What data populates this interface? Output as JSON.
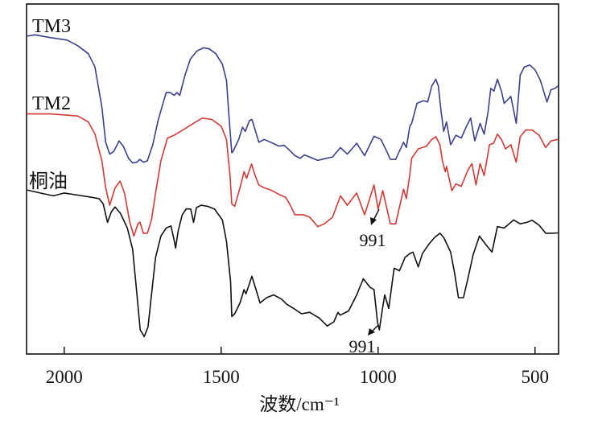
{
  "chart_data": {
    "type": "line",
    "title": "",
    "xlabel": "波数/cm⁻¹",
    "ylabel": "",
    "xlim": [
      2120,
      425
    ],
    "ylim": [
      0,
      100
    ],
    "x_reversed": true,
    "y_ticks_shown": false,
    "grid": false,
    "xticks": [
      2000,
      1500,
      1000,
      500
    ],
    "xtick_labels": [
      "2000",
      "1500",
      "1000",
      "500"
    ],
    "series": [
      {
        "name": "TM3",
        "color": "#3b3f8c",
        "points": [
          [
            2120,
            90.8
          ],
          [
            2094,
            91.2
          ],
          [
            2043,
            90.4
          ],
          [
            1991,
            89.7
          ],
          [
            1957,
            88.1
          ],
          [
            1923,
            85.8
          ],
          [
            1902,
            82.0
          ],
          [
            1880,
            70.5
          ],
          [
            1868,
            60.5
          ],
          [
            1855,
            57.1
          ],
          [
            1842,
            57.9
          ],
          [
            1825,
            60.9
          ],
          [
            1812,
            59.4
          ],
          [
            1795,
            55.9
          ],
          [
            1782,
            54.6
          ],
          [
            1769,
            54.8
          ],
          [
            1759,
            55.6
          ],
          [
            1748,
            54.8
          ],
          [
            1735,
            55.2
          ],
          [
            1718,
            59.8
          ],
          [
            1701,
            66.7
          ],
          [
            1684,
            72.0
          ],
          [
            1675,
            74.7
          ],
          [
            1662,
            74.7
          ],
          [
            1650,
            73.9
          ],
          [
            1641,
            74.7
          ],
          [
            1632,
            73.9
          ],
          [
            1615,
            79.7
          ],
          [
            1598,
            84.3
          ],
          [
            1577,
            86.6
          ],
          [
            1556,
            87.5
          ],
          [
            1538,
            87.2
          ],
          [
            1517,
            85.8
          ],
          [
            1496,
            82.8
          ],
          [
            1483,
            78.2
          ],
          [
            1474,
            66.7
          ],
          [
            1466,
            57.5
          ],
          [
            1462,
            57.9
          ],
          [
            1444,
            61.3
          ],
          [
            1432,
            64.8
          ],
          [
            1423,
            63.6
          ],
          [
            1410,
            66.7
          ],
          [
            1402,
            67.0
          ],
          [
            1393,
            64.4
          ],
          [
            1380,
            60.5
          ],
          [
            1363,
            61.3
          ],
          [
            1342,
            60.5
          ],
          [
            1316,
            59.4
          ],
          [
            1299,
            59.6
          ],
          [
            1282,
            58.2
          ],
          [
            1265,
            56.7
          ],
          [
            1248,
            55.9
          ],
          [
            1235,
            56.9
          ],
          [
            1218,
            56.3
          ],
          [
            1192,
            55.3
          ],
          [
            1171,
            55.8
          ],
          [
            1145,
            56.3
          ],
          [
            1120,
            59.0
          ],
          [
            1098,
            57.1
          ],
          [
            1068,
            60.2
          ],
          [
            1043,
            56.7
          ],
          [
            1013,
            62.2
          ],
          [
            991,
            61.3
          ],
          [
            974,
            58.2
          ],
          [
            961,
            55.6
          ],
          [
            944,
            55.6
          ],
          [
            919,
            60.5
          ],
          [
            910,
            59.0
          ],
          [
            899,
            65.1
          ],
          [
            893,
            65.9
          ],
          [
            876,
            71.6
          ],
          [
            855,
            72.4
          ],
          [
            842,
            72.0
          ],
          [
            829,
            76.6
          ],
          [
            816,
            78.5
          ],
          [
            808,
            76.6
          ],
          [
            799,
            69.0
          ],
          [
            791,
            63.6
          ],
          [
            782,
            66.3
          ],
          [
            769,
            59.8
          ],
          [
            752,
            62.5
          ],
          [
            735,
            61.7
          ],
          [
            718,
            65.1
          ],
          [
            705,
            67.4
          ],
          [
            692,
            60.9
          ],
          [
            675,
            65.9
          ],
          [
            662,
            62.8
          ],
          [
            650,
            69.0
          ],
          [
            641,
            75.9
          ],
          [
            631,
            75.1
          ],
          [
            620,
            78.5
          ],
          [
            607,
            75.1
          ],
          [
            598,
            71.6
          ],
          [
            577,
            73.6
          ],
          [
            560,
            65.9
          ],
          [
            547,
            79.7
          ],
          [
            534,
            82.0
          ],
          [
            517,
            82.6
          ],
          [
            500,
            81.2
          ],
          [
            483,
            78.2
          ],
          [
            462,
            72.0
          ],
          [
            449,
            75.5
          ],
          [
            436,
            75.9
          ],
          [
            427,
            76.6
          ]
        ]
      },
      {
        "name": "TM2",
        "color": "#d23a35",
        "points": [
          [
            2120,
            68.6
          ],
          [
            2043,
            68.6
          ],
          [
            1957,
            68.0
          ],
          [
            1923,
            66.3
          ],
          [
            1902,
            62.8
          ],
          [
            1880,
            55.2
          ],
          [
            1868,
            47.5
          ],
          [
            1855,
            42.5
          ],
          [
            1838,
            47.5
          ],
          [
            1822,
            49.4
          ],
          [
            1808,
            46.0
          ],
          [
            1791,
            37.6
          ],
          [
            1778,
            33.7
          ],
          [
            1765,
            37.2
          ],
          [
            1759,
            37.7
          ],
          [
            1748,
            34.5
          ],
          [
            1735,
            34.5
          ],
          [
            1722,
            38.3
          ],
          [
            1709,
            46.0
          ],
          [
            1692,
            55.2
          ],
          [
            1671,
            61.7
          ],
          [
            1650,
            62.5
          ],
          [
            1637,
            63.2
          ],
          [
            1615,
            64.4
          ],
          [
            1581,
            66.3
          ],
          [
            1560,
            67.4
          ],
          [
            1530,
            67.0
          ],
          [
            1500,
            65.1
          ],
          [
            1483,
            61.3
          ],
          [
            1472,
            51.3
          ],
          [
            1466,
            42.9
          ],
          [
            1457,
            42.2
          ],
          [
            1440,
            47.5
          ],
          [
            1427,
            52.1
          ],
          [
            1419,
            50.2
          ],
          [
            1403,
            54.3
          ],
          [
            1393,
            51.3
          ],
          [
            1380,
            48.3
          ],
          [
            1363,
            47.5
          ],
          [
            1338,
            46.7
          ],
          [
            1316,
            45.6
          ],
          [
            1295,
            44.8
          ],
          [
            1282,
            42.9
          ],
          [
            1265,
            39.8
          ],
          [
            1239,
            39.8
          ],
          [
            1218,
            39.1
          ],
          [
            1192,
            36.4
          ],
          [
            1171,
            37.2
          ],
          [
            1145,
            39.1
          ],
          [
            1120,
            45.2
          ],
          [
            1098,
            42.5
          ],
          [
            1068,
            46.0
          ],
          [
            1043,
            39.8
          ],
          [
            1013,
            48.3
          ],
          [
            1000,
            41.4
          ],
          [
            985,
            46.7
          ],
          [
            961,
            37.2
          ],
          [
            944,
            37.2
          ],
          [
            919,
            47.1
          ],
          [
            910,
            44.4
          ],
          [
            899,
            51.3
          ],
          [
            893,
            55.9
          ],
          [
            872,
            58.6
          ],
          [
            846,
            59.4
          ],
          [
            829,
            61.3
          ],
          [
            816,
            62.1
          ],
          [
            803,
            59.8
          ],
          [
            795,
            55.2
          ],
          [
            786,
            52.1
          ],
          [
            782,
            53.6
          ],
          [
            765,
            46.7
          ],
          [
            752,
            48.6
          ],
          [
            735,
            47.9
          ],
          [
            714,
            52.5
          ],
          [
            701,
            54.4
          ],
          [
            688,
            48.3
          ],
          [
            675,
            54.4
          ],
          [
            662,
            51.0
          ],
          [
            645,
            59.8
          ],
          [
            632,
            60.2
          ],
          [
            620,
            62.8
          ],
          [
            607,
            61.3
          ],
          [
            594,
            58.6
          ],
          [
            577,
            59.8
          ],
          [
            560,
            54.8
          ],
          [
            547,
            62.1
          ],
          [
            530,
            64.0
          ],
          [
            509,
            64.0
          ],
          [
            487,
            62.5
          ],
          [
            466,
            59.0
          ],
          [
            449,
            60.9
          ],
          [
            427,
            61.3
          ]
        ]
      },
      {
        "name": "桐油",
        "color": "#111111",
        "points": [
          [
            2120,
            46.9
          ],
          [
            2077,
            46.0
          ],
          [
            2034,
            45.2
          ],
          [
            2000,
            46.0
          ],
          [
            1957,
            45.4
          ],
          [
            1915,
            44.8
          ],
          [
            1889,
            44.4
          ],
          [
            1876,
            42.9
          ],
          [
            1862,
            37.6
          ],
          [
            1850,
            40.6
          ],
          [
            1838,
            42.0
          ],
          [
            1821,
            40.2
          ],
          [
            1799,
            36.0
          ],
          [
            1782,
            29.9
          ],
          [
            1769,
            17.6
          ],
          [
            1758,
            6.9
          ],
          [
            1745,
            5.0
          ],
          [
            1733,
            7.7
          ],
          [
            1722,
            16.9
          ],
          [
            1709,
            27.6
          ],
          [
            1692,
            33.7
          ],
          [
            1675,
            36.0
          ],
          [
            1660,
            36.6
          ],
          [
            1651,
            33.0
          ],
          [
            1645,
            30.3
          ],
          [
            1637,
            35.2
          ],
          [
            1624,
            39.8
          ],
          [
            1611,
            41.5
          ],
          [
            1597,
            41.4
          ],
          [
            1588,
            37.6
          ],
          [
            1579,
            41.8
          ],
          [
            1564,
            42.5
          ],
          [
            1543,
            42.2
          ],
          [
            1521,
            41.4
          ],
          [
            1496,
            38.3
          ],
          [
            1483,
            32.2
          ],
          [
            1470,
            20.7
          ],
          [
            1466,
            10.7
          ],
          [
            1457,
            11.5
          ],
          [
            1440,
            14.6
          ],
          [
            1427,
            18.4
          ],
          [
            1421,
            17.2
          ],
          [
            1402,
            22.2
          ],
          [
            1389,
            18.4
          ],
          [
            1376,
            14.6
          ],
          [
            1355,
            16.1
          ],
          [
            1333,
            16.9
          ],
          [
            1308,
            15.7
          ],
          [
            1291,
            14.2
          ],
          [
            1269,
            13.0
          ],
          [
            1244,
            11.5
          ],
          [
            1218,
            11.9
          ],
          [
            1188,
            10.3
          ],
          [
            1162,
            8.0
          ],
          [
            1141,
            9.2
          ],
          [
            1128,
            11.9
          ],
          [
            1121,
            11.1
          ],
          [
            1094,
            12.3
          ],
          [
            1068,
            16.9
          ],
          [
            1047,
            21.5
          ],
          [
            1026,
            19.1
          ],
          [
            1013,
            18.4
          ],
          [
            1002,
            9.2
          ],
          [
            996,
            6.9
          ],
          [
            987,
            12.3
          ],
          [
            979,
            16.9
          ],
          [
            966,
            13.0
          ],
          [
            949,
            24.5
          ],
          [
            932,
            23.8
          ],
          [
            914,
            27.6
          ],
          [
            899,
            28.7
          ],
          [
            889,
            29.1
          ],
          [
            872,
            24.9
          ],
          [
            859,
            28.7
          ],
          [
            838,
            31.4
          ],
          [
            820,
            33.3
          ],
          [
            803,
            34.5
          ],
          [
            791,
            33.3
          ],
          [
            769,
            29.1
          ],
          [
            756,
            23.0
          ],
          [
            744,
            16.1
          ],
          [
            728,
            16.1
          ],
          [
            714,
            21.5
          ],
          [
            697,
            28.4
          ],
          [
            677,
            33.7
          ],
          [
            658,
            31.4
          ],
          [
            637,
            29.1
          ],
          [
            620,
            36.4
          ],
          [
            598,
            36.0
          ],
          [
            568,
            38.3
          ],
          [
            547,
            37.2
          ],
          [
            526,
            37.6
          ],
          [
            509,
            38.2
          ],
          [
            487,
            36.8
          ],
          [
            466,
            34.5
          ],
          [
            449,
            34.5
          ],
          [
            427,
            34.6
          ]
        ]
      }
    ],
    "annotations": [
      {
        "text": "991",
        "x": 991,
        "series": "TM2"
      },
      {
        "text": "991",
        "x": 991,
        "series": "桐油"
      }
    ]
  }
}
